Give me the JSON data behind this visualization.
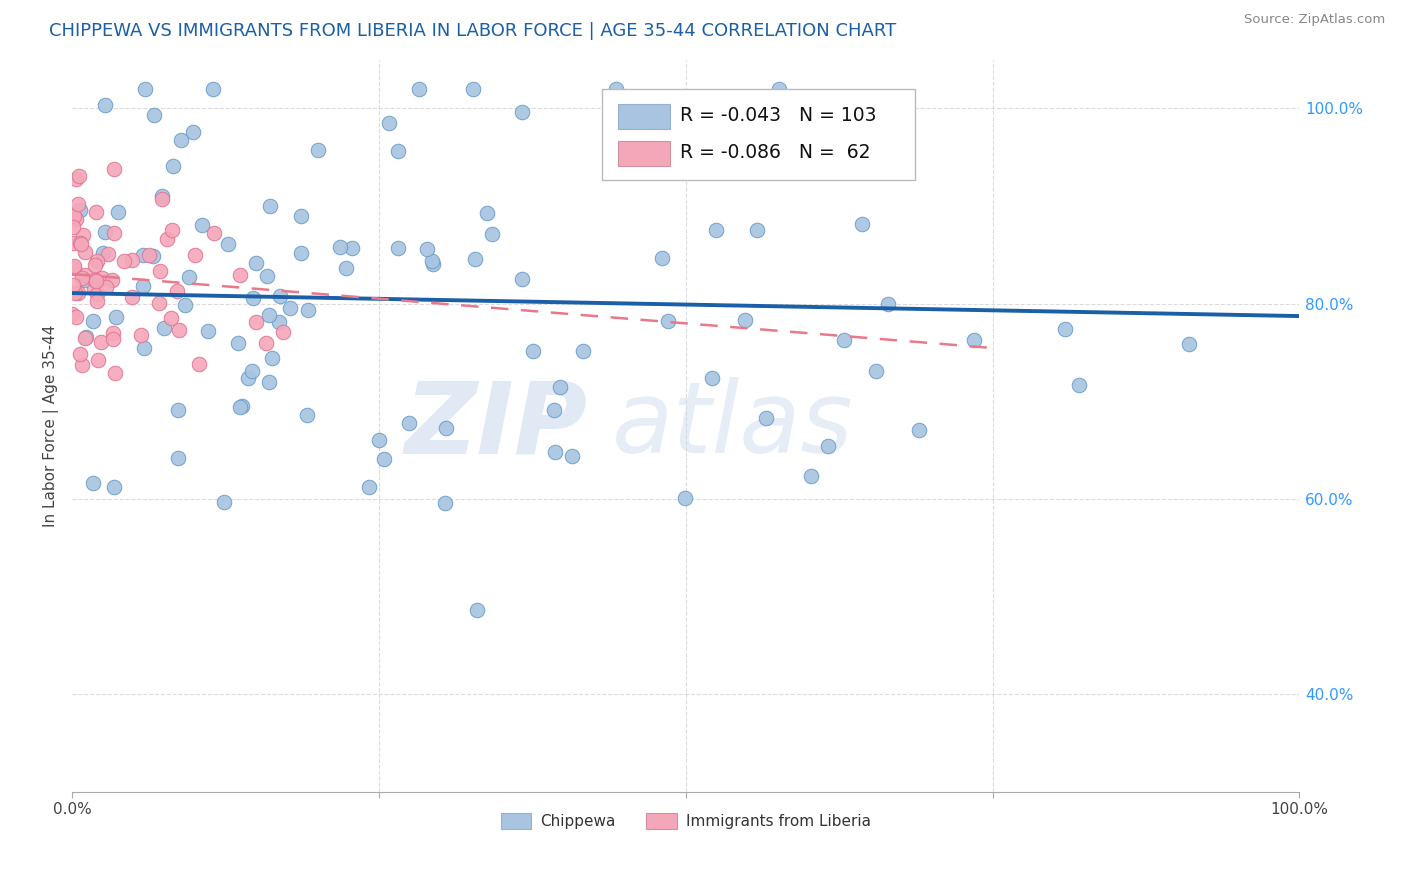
{
  "title": "CHIPPEWA VS IMMIGRANTS FROM LIBERIA IN LABOR FORCE | AGE 35-44 CORRELATION CHART",
  "source_text": "Source: ZipAtlas.com",
  "ylabel": "In Labor Force | Age 35-44",
  "legend_label_blue": "Chippewa",
  "legend_label_pink": "Immigrants from Liberia",
  "R_blue": -0.043,
  "N_blue": 103,
  "R_pink": -0.086,
  "N_pink": 62,
  "xlim": [
    0.0,
    1.0
  ],
  "ylim": [
    0.3,
    1.05
  ],
  "color_blue": "#a8c4e0",
  "color_pink": "#f4a7b9",
  "edge_blue": "#6699cc",
  "edge_pink": "#e07090",
  "trendline_blue": "#1a5fa8",
  "trendline_pink": "#e8798a",
  "background_color": "#ffffff",
  "watermark_zip": "ZIP",
  "watermark_atlas": "atlas",
  "grid_color": "#cccccc",
  "right_tick_color": "#3399ff"
}
